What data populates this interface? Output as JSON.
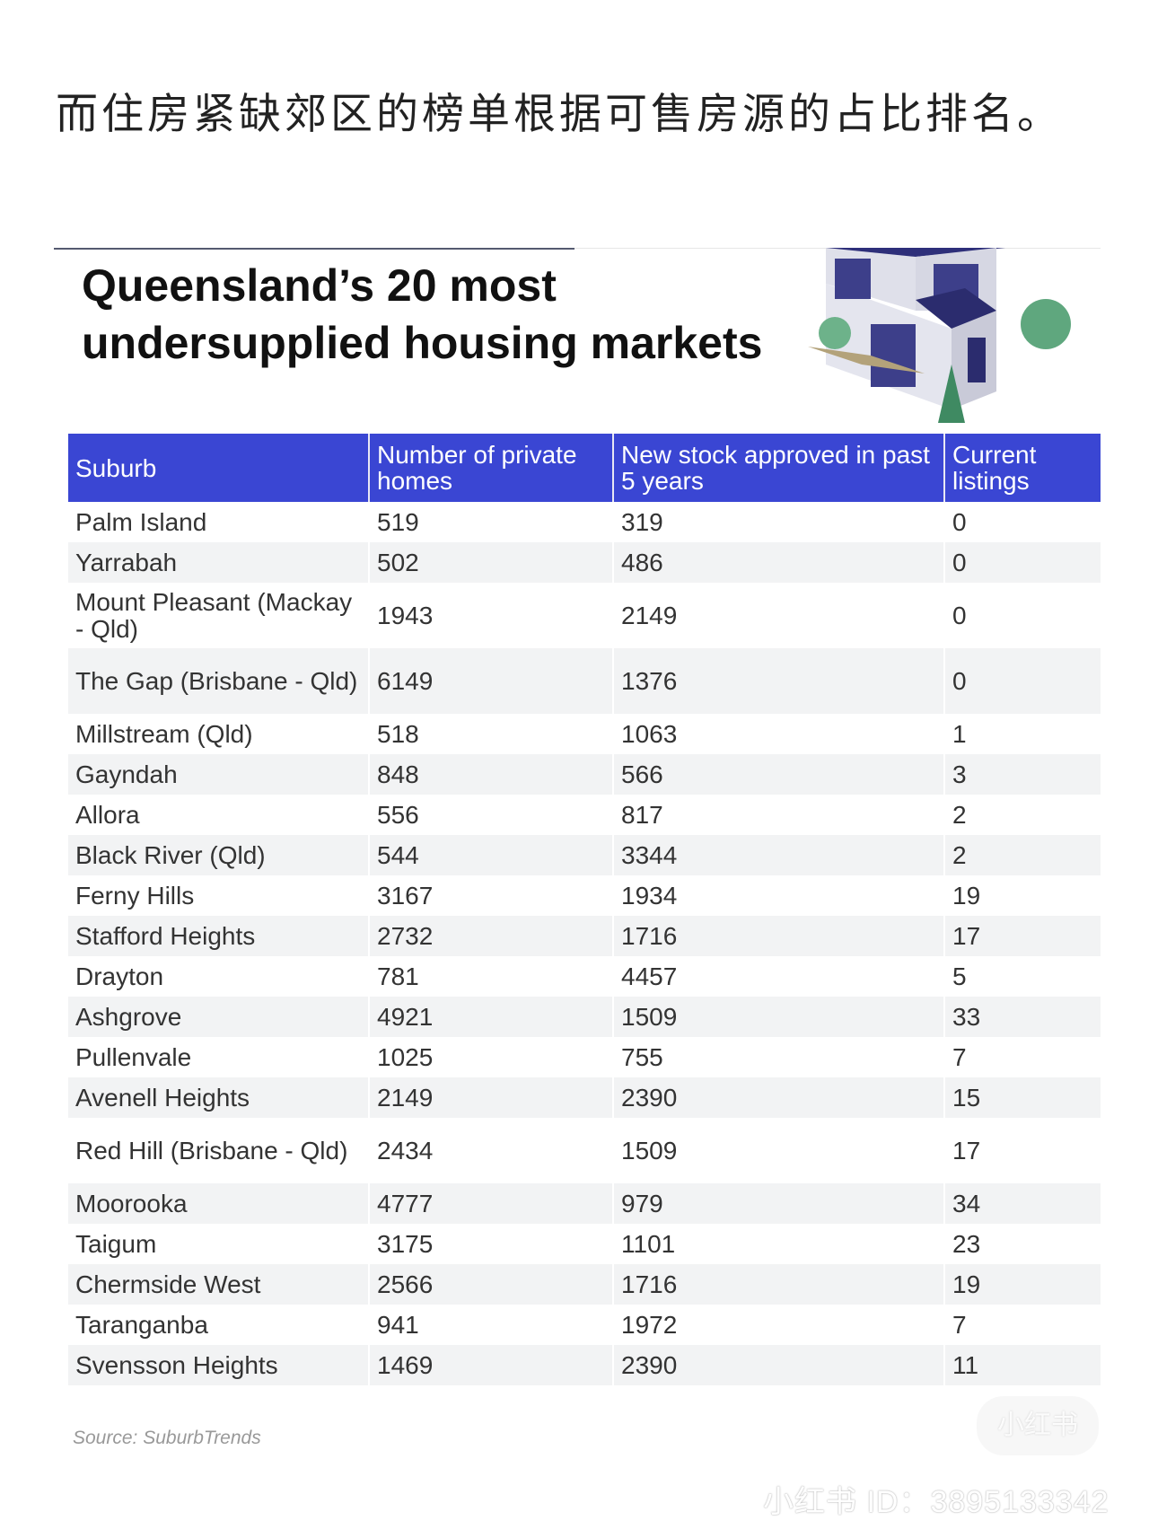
{
  "caption": "而住房紧缺郊区的榜单根据可售房源的占比排名。",
  "title": {
    "line1": "Queensland’s 20 most",
    "line2": "undersupplied housing markets"
  },
  "colors": {
    "header": "#3a46d3",
    "stripe": "#f2f3f4"
  },
  "table": {
    "headers": [
      "Suburb",
      "Number of private homes",
      "New stock approved in past 5 years",
      "Current listings"
    ],
    "rows": [
      [
        "Palm Island",
        "519",
        "319",
        "0"
      ],
      [
        "Yarrabah",
        "502",
        "486",
        "0"
      ],
      [
        "Mount Pleasant (Mackay - Qld)",
        "1943",
        "2149",
        "0"
      ],
      [
        "The Gap (Brisbane - Qld)",
        "6149",
        "1376",
        "0"
      ],
      [
        "Millstream (Qld)",
        "518",
        "1063",
        "1"
      ],
      [
        "Gayndah",
        "848",
        "566",
        "3"
      ],
      [
        "Allora",
        "556",
        "817",
        "2"
      ],
      [
        "Black River (Qld)",
        "544",
        "3344",
        "2"
      ],
      [
        "Ferny Hills",
        "3167",
        "1934",
        "19"
      ],
      [
        "Stafford Heights",
        "2732",
        "1716",
        "17"
      ],
      [
        "Drayton",
        "781",
        "4457",
        "5"
      ],
      [
        "Ashgrove",
        "4921",
        "1509",
        "33"
      ],
      [
        "Pullenvale",
        "1025",
        "755",
        "7"
      ],
      [
        "Avenell Heights",
        "2149",
        "2390",
        "15"
      ],
      [
        "Red Hill (Brisbane - Qld)",
        "2434",
        "1509",
        "17"
      ],
      [
        "Moorooka",
        "4777",
        "979",
        "34"
      ],
      [
        "Taigum",
        "3175",
        "1101",
        "23"
      ],
      [
        "Chermside West",
        "2566",
        "1716",
        "19"
      ],
      [
        "Taranganba",
        "941",
        "1972",
        "7"
      ],
      [
        "Svensson Heights",
        "1469",
        "2390",
        "11"
      ]
    ]
  },
  "source": "Source: SuburbTrends",
  "watermark": {
    "badge": "小红书",
    "id": "小红书 ID：3895133342"
  }
}
